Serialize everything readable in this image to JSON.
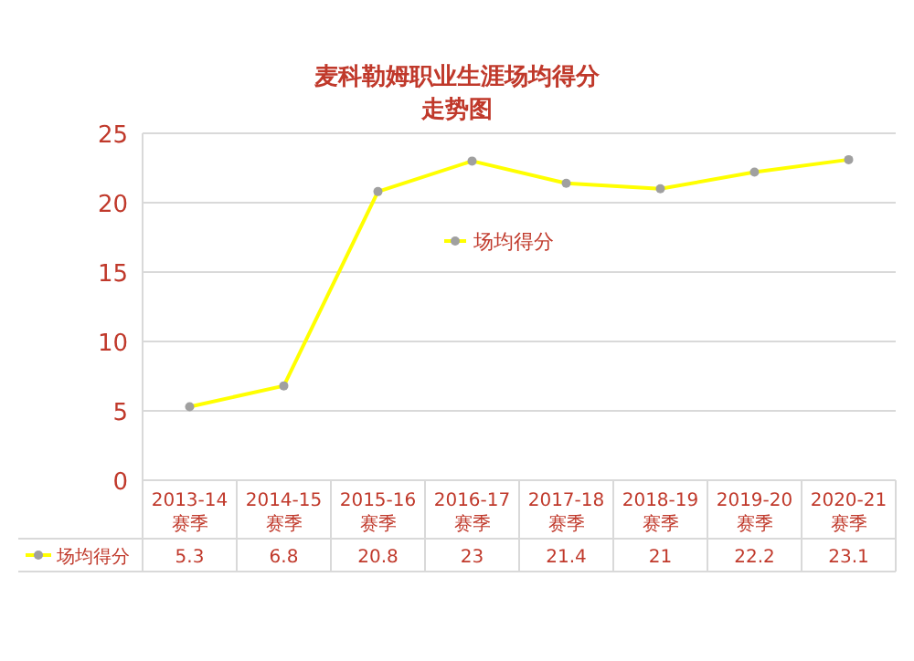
{
  "chart_data": {
    "type": "line",
    "title": "麦科勒姆职业生涯场均得分走势图",
    "categories": [
      "2013-14\n赛季",
      "2014-15\n赛季",
      "2015-16\n赛季",
      "2016-17\n赛季",
      "2017-18\n赛季",
      "2018-19\n赛季",
      "2019-20\n赛季",
      "2020-21\n赛季"
    ],
    "series": [
      {
        "name": "场均得分",
        "color": "#ffff00",
        "values": [
          5.3,
          6.8,
          20.8,
          23,
          21.4,
          21,
          22.2,
          23.1
        ]
      }
    ],
    "ylim": [
      0,
      25
    ],
    "yticks": [
      0,
      5,
      10,
      15,
      20,
      25
    ],
    "grid": "y",
    "legend": "center",
    "marker": "circle",
    "data_labels": true
  }
}
